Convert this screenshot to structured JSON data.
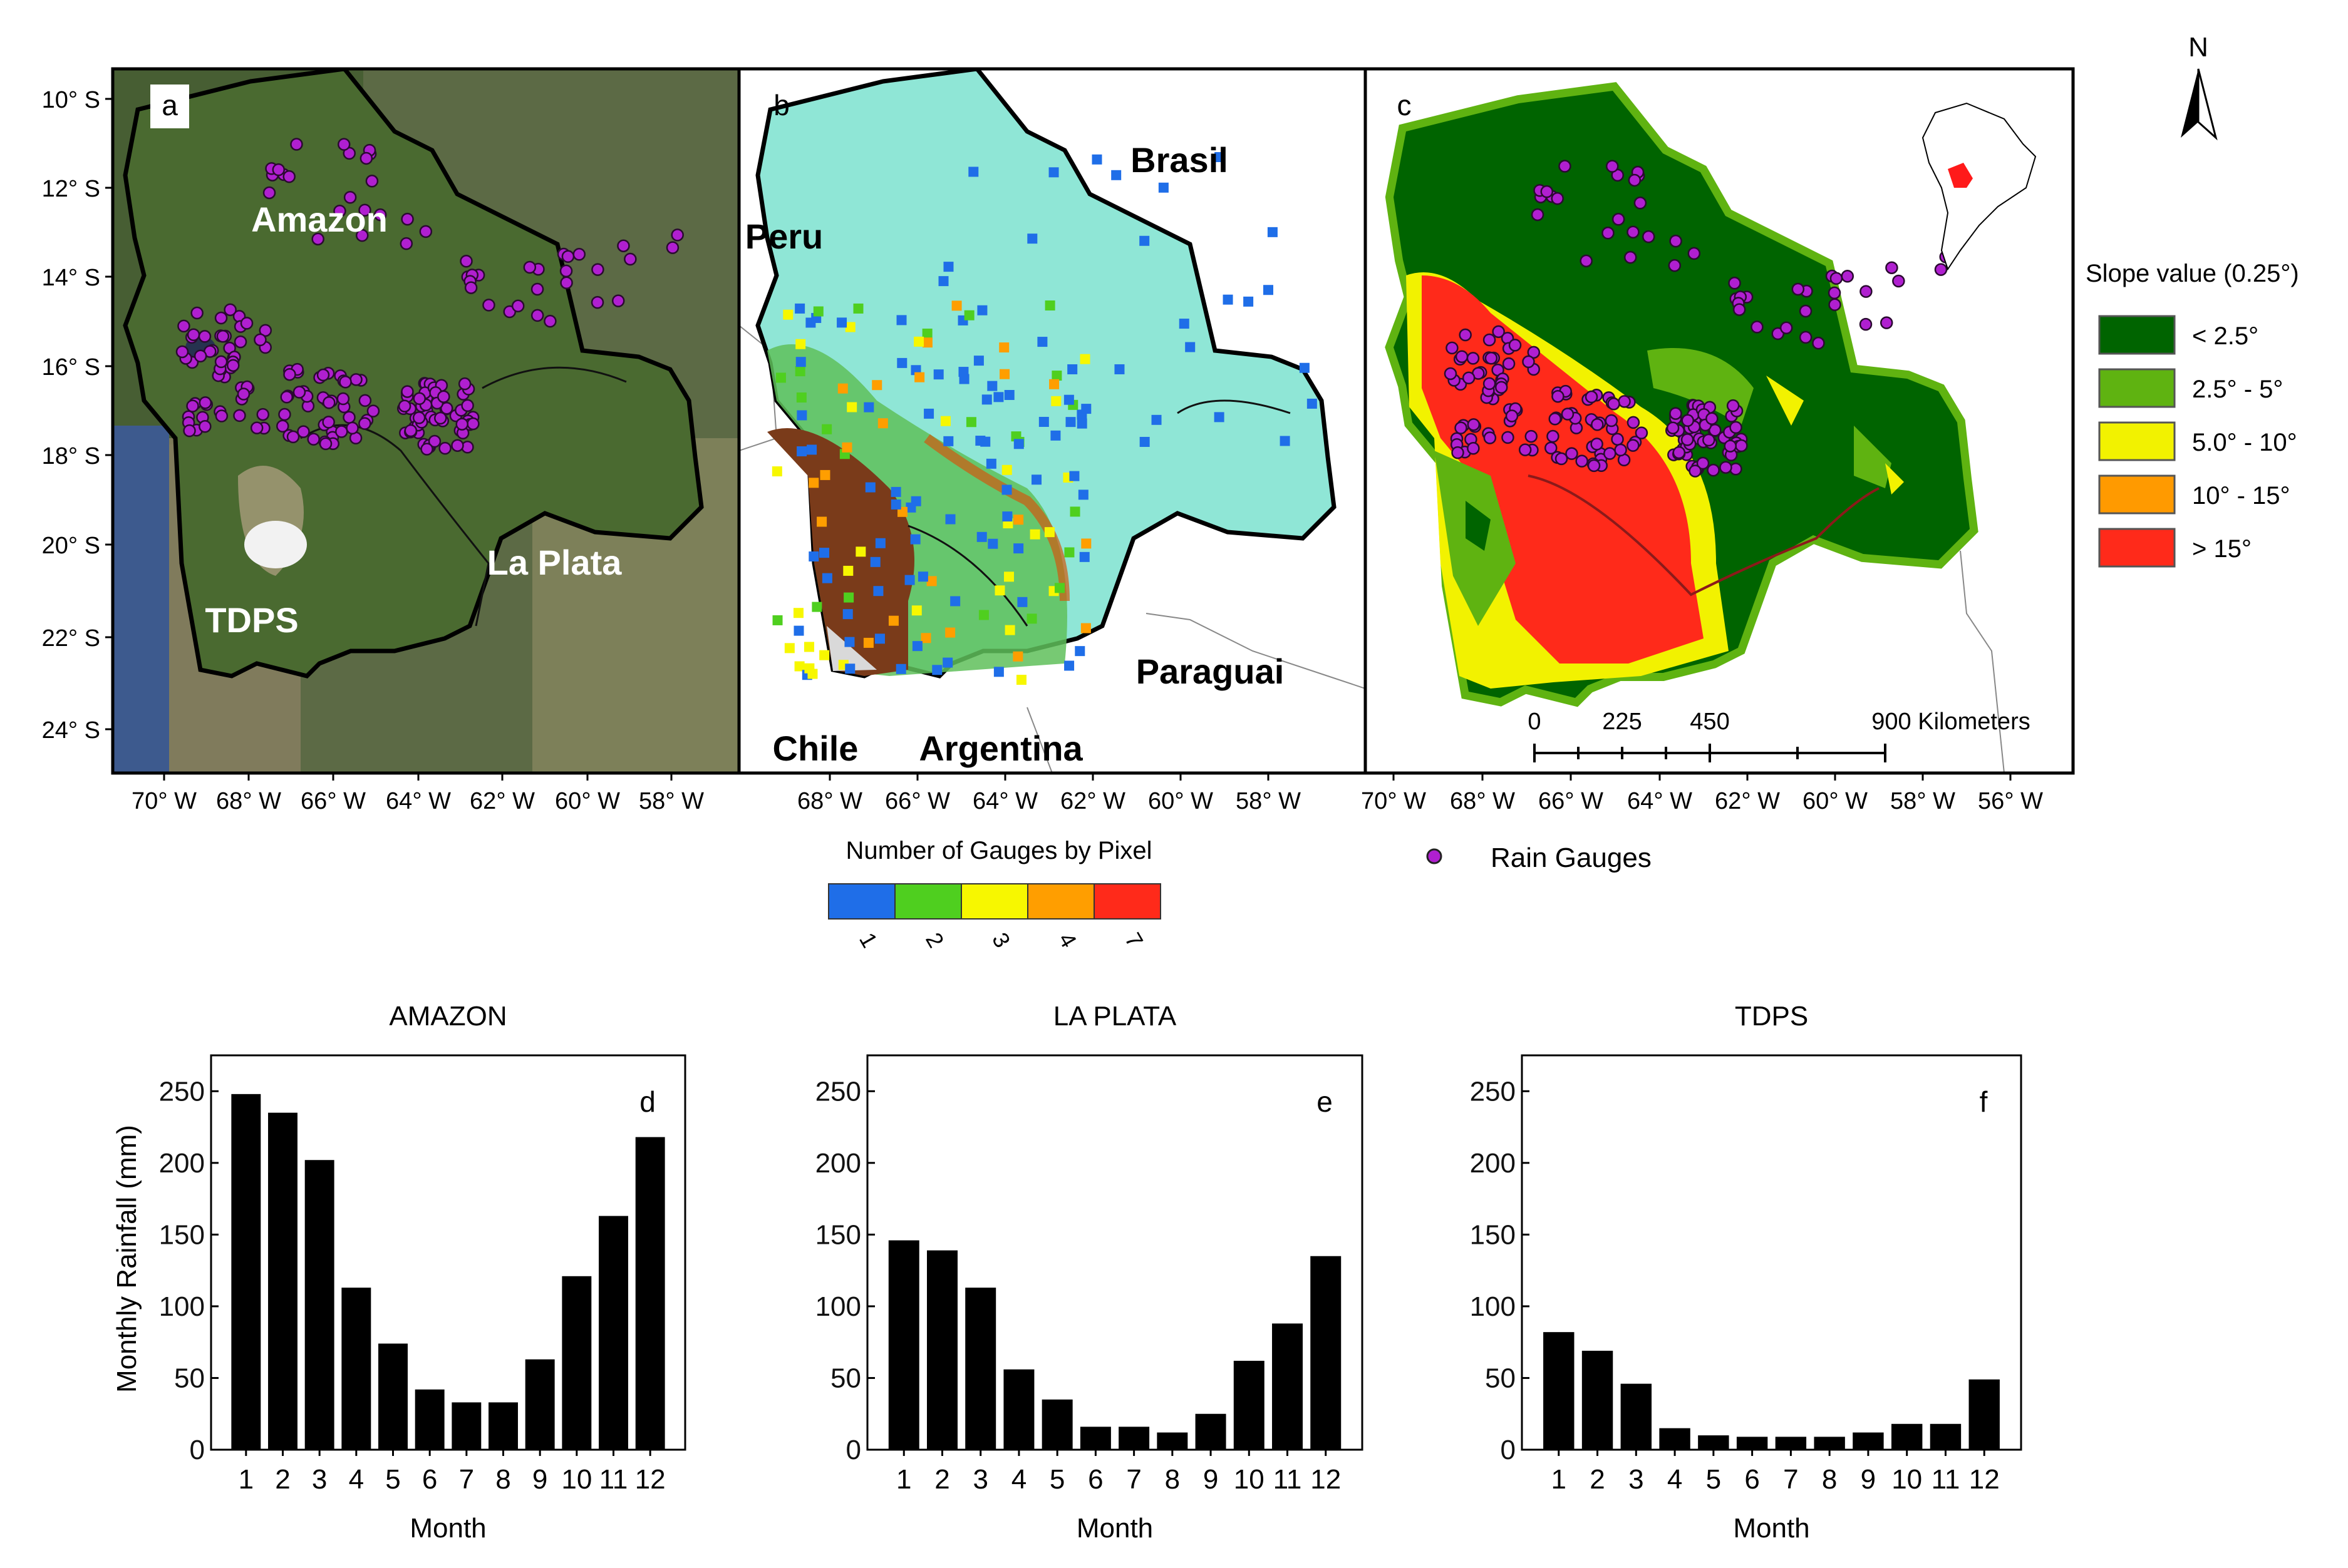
{
  "colors": {
    "satellite": "#556b3a",
    "elevation_low": "#8fe6d6",
    "elevation_high": "#7a3b1a",
    "gauge_fill": "#b01fd0",
    "slope_lt25": "#006400",
    "slope_25_5": "#5fb311",
    "slope_5_10": "#f2f200",
    "slope_10_15": "#ff9a00",
    "slope_gt15": "#ff2a1a",
    "count_1": "#1f6ee8",
    "count_2": "#4fcf1f",
    "count_3": "#f7f700",
    "count_4": "#ff9e00",
    "count_7": "#ff2a1a"
  },
  "panel_a": {
    "label": "a",
    "regions": {
      "amazon": "Amazon",
      "la_plata": "La Plata",
      "tdps": "TDPS"
    },
    "lat_ticks": [
      "10° S",
      "12° S",
      "14° S",
      "16° S",
      "18° S",
      "20° S",
      "22° S",
      "24° S"
    ],
    "lon_ticks": [
      "70° W",
      "68° W",
      "66° W",
      "64° W",
      "62° W",
      "60° W",
      "58° W"
    ]
  },
  "panel_b": {
    "label": "b",
    "countries": {
      "brasil": "Brasil",
      "peru": "Peru",
      "paraguai": "Paraguai",
      "chile": "Chile",
      "argentina": "Argentina"
    },
    "lon_ticks": [
      "68° W",
      "66° W",
      "64° W",
      "62° W",
      "60° W",
      "58° W"
    ],
    "legend_title": "Number of Gauges by Pixel",
    "legend_values": [
      "1",
      "2",
      "3",
      "4",
      "7"
    ]
  },
  "panel_c": {
    "label": "c",
    "lon_ticks": [
      "70° W",
      "68° W",
      "66° W",
      "64° W",
      "62° W",
      "60° W",
      "58° W",
      "56° W"
    ],
    "scale_labels": [
      "0",
      "225",
      "450",
      "900 Kilometers"
    ],
    "gauge_legend": "Rain Gauges"
  },
  "north_arrow": "N",
  "slope_legend": {
    "title": "Slope value (0.25°)",
    "classes": [
      "< 2.5°",
      "2.5° - 5°",
      "5.0° - 10°",
      "10° - 15°",
      "> 15°"
    ]
  },
  "chart_data": [
    {
      "type": "bar",
      "panel": "d",
      "title": "AMAZON",
      "categories": [
        "1",
        "2",
        "3",
        "4",
        "5",
        "6",
        "7",
        "8",
        "9",
        "10",
        "11",
        "12"
      ],
      "values": [
        248,
        235,
        202,
        113,
        74,
        42,
        33,
        33,
        63,
        121,
        163,
        218
      ],
      "xlabel": "Month",
      "ylabel": "Monthly Rainfall (mm)",
      "ylim": [
        0,
        275
      ],
      "yticks": [
        "0",
        "50",
        "100",
        "150",
        "200",
        "250"
      ]
    },
    {
      "type": "bar",
      "panel": "e",
      "title": "LA PLATA",
      "categories": [
        "1",
        "2",
        "3",
        "4",
        "5",
        "6",
        "7",
        "8",
        "9",
        "10",
        "11",
        "12"
      ],
      "values": [
        146,
        139,
        113,
        56,
        35,
        16,
        16,
        12,
        25,
        62,
        88,
        135
      ],
      "xlabel": "Month",
      "ylabel": "",
      "ylim": [
        0,
        275
      ],
      "yticks": [
        "0",
        "50",
        "100",
        "150",
        "200",
        "250"
      ]
    },
    {
      "type": "bar",
      "panel": "f",
      "title": "TDPS",
      "categories": [
        "1",
        "2",
        "3",
        "4",
        "5",
        "6",
        "7",
        "8",
        "9",
        "10",
        "11",
        "12"
      ],
      "values": [
        82,
        69,
        46,
        15,
        10,
        9,
        9,
        9,
        12,
        18,
        18,
        49
      ],
      "xlabel": "Month",
      "ylabel": "",
      "ylim": [
        0,
        275
      ],
      "yticks": [
        "0",
        "50",
        "100",
        "150",
        "200",
        "250"
      ]
    }
  ]
}
